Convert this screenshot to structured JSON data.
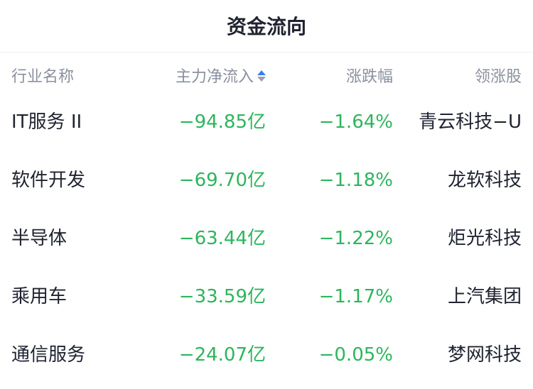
{
  "title": "资金流向",
  "colors": {
    "negative": "#2db55d",
    "sort_active": "#3b7cf0"
  },
  "headers": {
    "industry": "行业名称",
    "net_inflow": "主力净流入",
    "change": "涨跌幅",
    "leader": "领涨股",
    "sort_icon": "sort-ascending-icon"
  },
  "rows": [
    {
      "industry": "IT服务 II",
      "net_inflow": "−94.85亿",
      "change": "−1.64%",
      "leader": "青云科技−U"
    },
    {
      "industry": "软件开发",
      "net_inflow": "−69.70亿",
      "change": "−1.18%",
      "leader": "龙软科技"
    },
    {
      "industry": "半导体",
      "net_inflow": "−63.44亿",
      "change": "−1.22%",
      "leader": "炬光科技"
    },
    {
      "industry": "乘用车",
      "net_inflow": "−33.59亿",
      "change": "−1.17%",
      "leader": "上汽集团"
    },
    {
      "industry": "通信服务",
      "net_inflow": "−24.07亿",
      "change": "−0.05%",
      "leader": "梦网科技"
    }
  ]
}
